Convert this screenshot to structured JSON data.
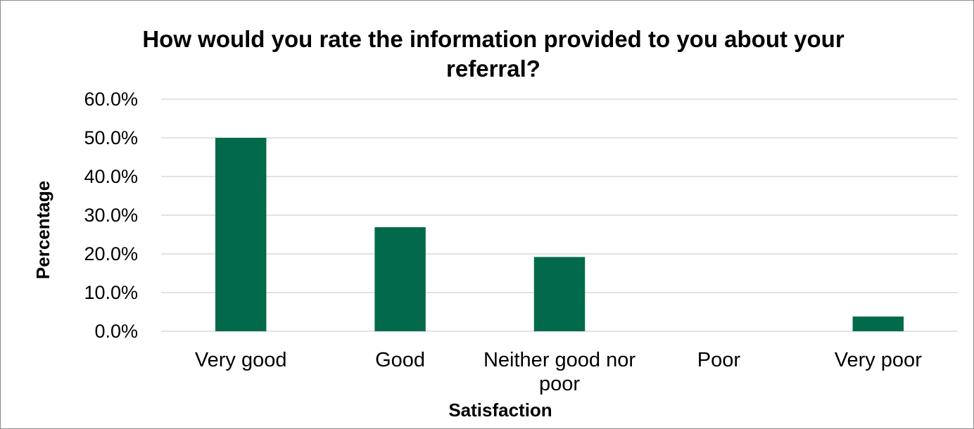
{
  "chart_data": {
    "type": "bar",
    "title": "How would you rate the information provided to you about your referral?",
    "x_label": "Satisfaction",
    "y_label": "Percentage",
    "categories": [
      "Very good",
      "Good",
      "Neither good nor poor",
      "Poor",
      "Very poor"
    ],
    "values": [
      50.0,
      26.9,
      19.2,
      0,
      3.8
    ],
    "color": "#026a4a",
    "ylim": [
      0,
      60
    ],
    "yticks": [
      {
        "value": 0,
        "label": "0.0%"
      },
      {
        "value": 10,
        "label": "10.0%"
      },
      {
        "value": 20,
        "label": "20.0%"
      },
      {
        "value": 30,
        "label": "30.0%"
      },
      {
        "value": 40,
        "label": "40.0%"
      },
      {
        "value": 50,
        "label": "50.0%"
      },
      {
        "value": 60,
        "label": "60.0%"
      }
    ],
    "grid": true
  }
}
